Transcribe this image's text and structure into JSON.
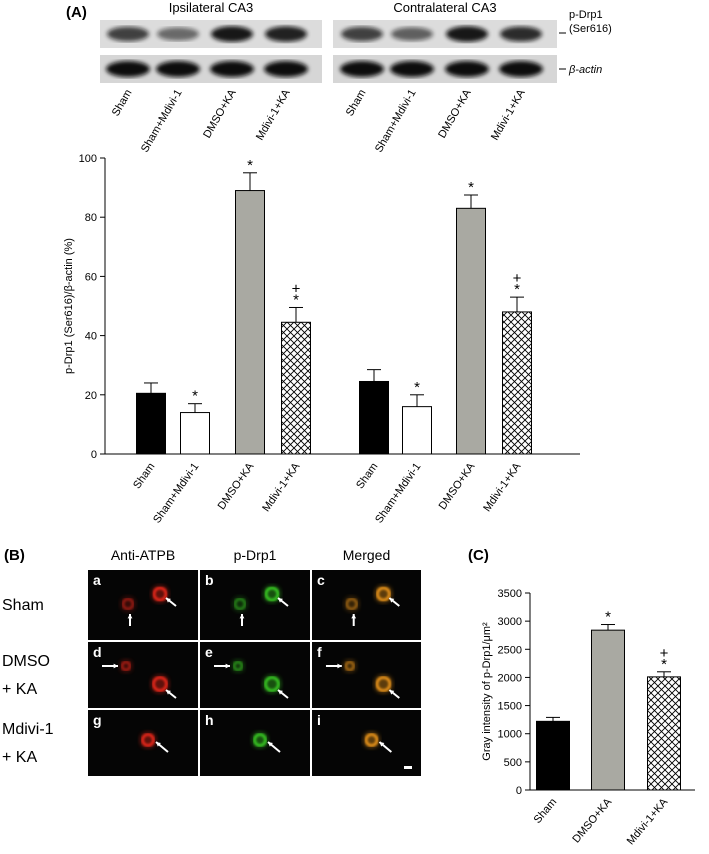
{
  "panel_labels": [
    "(A)",
    "(B)",
    "(C)"
  ],
  "blot": {
    "groups": [
      "Ipsilateral CA3",
      "Contralateral CA3"
    ],
    "bands": [
      [
        "p-Drp1",
        "(Ser616)"
      ],
      [
        "β-actin"
      ]
    ],
    "lanes": [
      "Sham",
      "Sham+Mdivi-1",
      "DMSO+KA",
      "Mdivi-1+KA",
      "Sham",
      "Sham+Mdivi-1",
      "DMSO+KA",
      "Mdivi-1+KA"
    ]
  },
  "micrographs": {
    "columns": [
      "Anti-ATPB",
      "p-Drp1",
      "Merged"
    ],
    "rows": [
      [
        "Sham"
      ],
      [
        "DMSO",
        "+ KA"
      ],
      [
        "Mdivi-1",
        "+ KA"
      ]
    ],
    "letters": [
      "a",
      "b",
      "c",
      "d",
      "e",
      "f",
      "g",
      "h",
      "i"
    ]
  },
  "chart_data": [
    {
      "type": "bar",
      "ylabel": "p-Drp1 (Ser616)/β-actin (%)",
      "categories": [
        "Sham",
        "Sham+Mdivi-1",
        "DMSO+KA",
        "Mdivi-1+KA",
        "Sham",
        "Sham+Mdivi-1",
        "DMSO+KA",
        "Mdivi-1+KA"
      ],
      "values": [
        20.5,
        14,
        89,
        44.5,
        24.5,
        16,
        83,
        48
      ],
      "errors": [
        3.5,
        3,
        6,
        5,
        4,
        4,
        4.5,
        5
      ],
      "colors": [
        "#000000",
        "#ffffff",
        "#a9a9a2",
        "#ffffff",
        "#000000",
        "#ffffff",
        "#a9a9a2",
        "#ffffff"
      ],
      "hatch": [
        false,
        false,
        false,
        true,
        false,
        false,
        false,
        true
      ],
      "annotations": [
        [],
        [
          "*"
        ],
        [
          "*"
        ],
        [
          "*",
          "+"
        ],
        [],
        [
          "*"
        ],
        [
          "*"
        ],
        [
          "*",
          "+"
        ]
      ],
      "ylim": [
        0,
        100
      ],
      "yticks": [
        0,
        20,
        40,
        60,
        80,
        100
      ]
    },
    {
      "type": "bar",
      "ylabel": "Gray intensity of p-Drp1/μm²",
      "categories": [
        "Sham",
        "DMSO+KA",
        "Mdivi-1+KA"
      ],
      "values": [
        1220,
        2840,
        2010
      ],
      "errors": [
        70,
        100,
        90
      ],
      "colors": [
        "#000000",
        "#a9a9a2",
        "#ffffff"
      ],
      "hatch": [
        false,
        false,
        true
      ],
      "annotations": [
        [],
        [
          "*"
        ],
        [
          "*",
          "+"
        ]
      ],
      "ylim": [
        0,
        3500
      ],
      "yticks": [
        0,
        500,
        1000,
        1500,
        2000,
        2500,
        3000,
        3500
      ]
    }
  ]
}
